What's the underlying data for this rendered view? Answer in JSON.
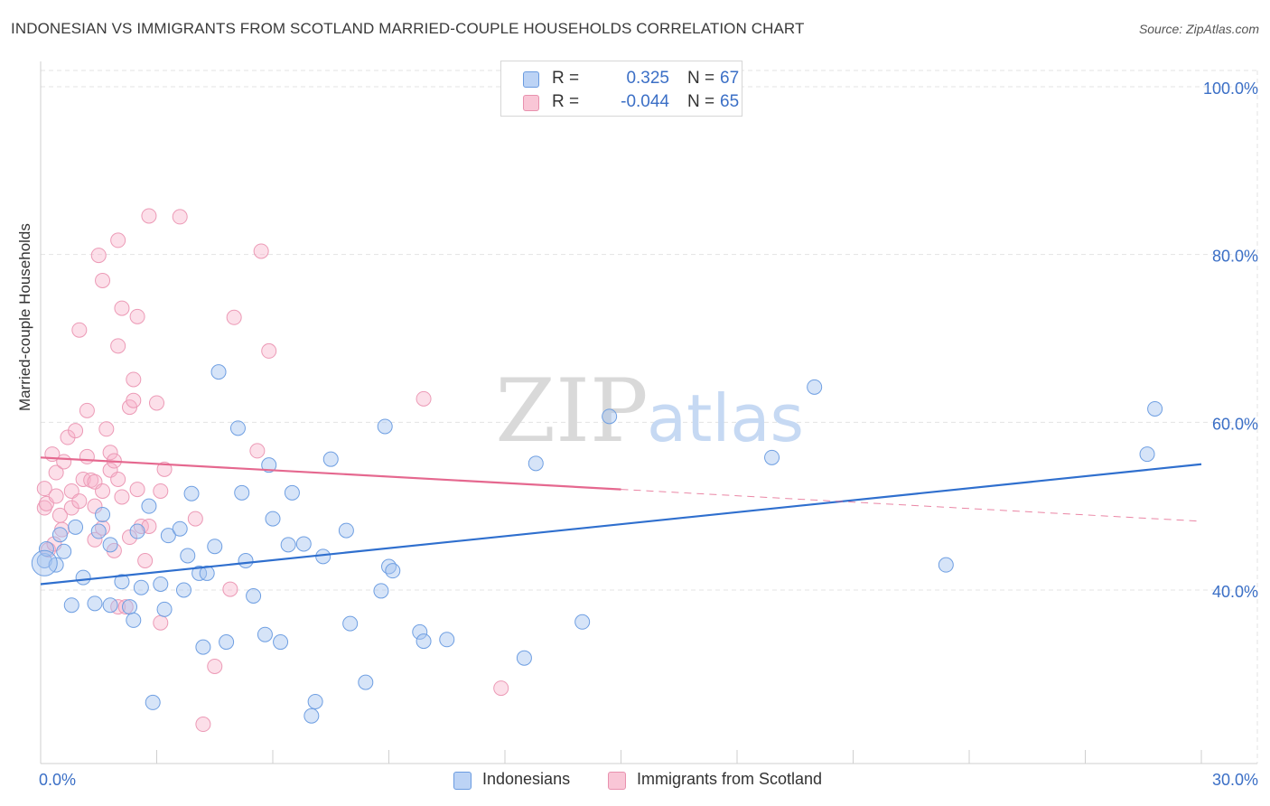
{
  "title": "INDONESIAN VS IMMIGRANTS FROM SCOTLAND MARRIED-COUPLE HOUSEHOLDS CORRELATION CHART",
  "source": "Source: ZipAtlas.com",
  "watermark": {
    "zip": "ZIP",
    "atlas": "atlas"
  },
  "legend": {
    "r_label": "R =",
    "n_label": "N =",
    "rows": [
      {
        "series": "Indonesians",
        "r": "0.325",
        "n": "67",
        "fill": "#bcd3f5",
        "stroke": "#6a9be0"
      },
      {
        "series": "Immigrants from Scotland",
        "r": "-0.044",
        "n": "65",
        "fill": "#f9c6d6",
        "stroke": "#e891ae"
      }
    ]
  },
  "colors": {
    "blue_point_fill": "rgba(164,196,240,0.45)",
    "blue_point_stroke": "#6f9fe2",
    "blue_line": "#2f6fce",
    "pink_point_fill": "rgba(247,176,200,0.40)",
    "pink_point_stroke": "#ec9ab6",
    "pink_line": "#e5688f",
    "axis_text": "#3b6fc6",
    "grid": "#e3e3e3"
  },
  "chart_data": {
    "type": "scatter",
    "title": "INDONESIAN VS IMMIGRANTS FROM SCOTLAND MARRIED-COUPLE HOUSEHOLDS CORRELATION CHART",
    "xlabel": "",
    "ylabel": "Married-couple Households",
    "xlim": [
      0,
      30
    ],
    "ylim": [
      20,
      102
    ],
    "x_ticks": [
      0,
      3,
      6,
      9,
      12,
      15,
      18,
      21,
      24,
      27,
      30
    ],
    "x_tick_labels": {
      "min": "0.0%",
      "max": "30.0%"
    },
    "y_ticks": [
      40,
      60,
      80,
      100
    ],
    "y_tick_labels": [
      "40.0%",
      "60.0%",
      "80.0%",
      "100.0%"
    ],
    "series": [
      {
        "name": "Indonesians",
        "R": 0.325,
        "N": 67,
        "trend": {
          "x0": 0,
          "y0": 40.7,
          "x1": 30,
          "y1": 55.0
        },
        "points": [
          [
            0.1,
            43.5
          ],
          [
            0.15,
            44.9
          ],
          [
            0.5,
            46.6
          ],
          [
            0.6,
            44.6
          ],
          [
            0.8,
            38.2
          ],
          [
            1.1,
            41.5
          ],
          [
            1.4,
            38.4
          ],
          [
            1.5,
            47.0
          ],
          [
            1.8,
            45.4
          ],
          [
            1.8,
            38.2
          ],
          [
            2.1,
            41.0
          ],
          [
            2.3,
            38.0
          ],
          [
            2.4,
            36.4
          ],
          [
            2.6,
            40.3
          ],
          [
            2.8,
            50.0
          ],
          [
            2.9,
            26.6
          ],
          [
            3.1,
            40.7
          ],
          [
            3.2,
            37.7
          ],
          [
            3.3,
            46.5
          ],
          [
            3.6,
            47.3
          ],
          [
            3.7,
            40.0
          ],
          [
            3.8,
            44.1
          ],
          [
            3.9,
            51.5
          ],
          [
            4.1,
            42.0
          ],
          [
            4.2,
            33.2
          ],
          [
            4.3,
            42.0
          ],
          [
            4.5,
            45.2
          ],
          [
            4.6,
            66.0
          ],
          [
            4.8,
            33.8
          ],
          [
            5.1,
            59.3
          ],
          [
            5.2,
            51.6
          ],
          [
            5.3,
            43.5
          ],
          [
            5.5,
            39.3
          ],
          [
            5.8,
            34.7
          ],
          [
            5.9,
            54.9
          ],
          [
            6.2,
            33.8
          ],
          [
            6.5,
            51.6
          ],
          [
            6.4,
            45.4
          ],
          [
            6.8,
            45.5
          ],
          [
            7.0,
            25.0
          ],
          [
            7.1,
            26.7
          ],
          [
            7.3,
            44.0
          ],
          [
            7.5,
            55.6
          ],
          [
            7.9,
            47.1
          ],
          [
            8.0,
            36.0
          ],
          [
            8.4,
            29.0
          ],
          [
            8.8,
            39.9
          ],
          [
            8.9,
            59.5
          ],
          [
            9.0,
            42.8
          ],
          [
            9.1,
            42.3
          ],
          [
            9.8,
            35.0
          ],
          [
            9.9,
            33.9
          ],
          [
            10.5,
            34.1
          ],
          [
            12.5,
            31.9
          ],
          [
            12.8,
            55.1
          ],
          [
            14.0,
            36.2
          ],
          [
            14.7,
            60.7
          ],
          [
            18.9,
            55.8
          ],
          [
            20.0,
            64.2
          ],
          [
            23.4,
            43.0
          ],
          [
            28.6,
            56.2
          ],
          [
            28.8,
            61.6
          ],
          [
            0.4,
            43.0
          ],
          [
            0.9,
            47.5
          ],
          [
            1.6,
            49.0
          ],
          [
            2.5,
            47.0
          ],
          [
            6.0,
            48.5
          ]
        ]
      },
      {
        "name": "Immigrants from Scotland",
        "R": -0.044,
        "N": 65,
        "trend": {
          "x0": 0,
          "y0": 55.8,
          "x1": 15,
          "y1": 52.0
        },
        "trend_dashed": {
          "x0": 15,
          "y0": 52.0,
          "x1": 30,
          "y1": 48.2
        },
        "points": [
          [
            0.1,
            49.8
          ],
          [
            0.1,
            52.1
          ],
          [
            0.15,
            50.3
          ],
          [
            0.2,
            44.8
          ],
          [
            0.3,
            56.2
          ],
          [
            0.4,
            54.0
          ],
          [
            0.4,
            51.2
          ],
          [
            0.5,
            48.9
          ],
          [
            0.55,
            47.2
          ],
          [
            0.6,
            55.3
          ],
          [
            0.7,
            58.2
          ],
          [
            0.8,
            51.8
          ],
          [
            0.8,
            49.8
          ],
          [
            0.9,
            59.0
          ],
          [
            1.0,
            71.0
          ],
          [
            1.1,
            53.2
          ],
          [
            1.2,
            61.4
          ],
          [
            1.2,
            55.9
          ],
          [
            1.3,
            53.1
          ],
          [
            1.4,
            52.9
          ],
          [
            1.4,
            46.0
          ],
          [
            1.4,
            50.0
          ],
          [
            1.5,
            79.9
          ],
          [
            1.6,
            47.4
          ],
          [
            1.6,
            51.8
          ],
          [
            1.6,
            76.9
          ],
          [
            1.7,
            59.2
          ],
          [
            1.8,
            54.3
          ],
          [
            1.8,
            56.4
          ],
          [
            1.9,
            44.7
          ],
          [
            1.9,
            55.4
          ],
          [
            2.0,
            69.1
          ],
          [
            2.0,
            81.7
          ],
          [
            2.0,
            53.2
          ],
          [
            2.0,
            38.0
          ],
          [
            2.1,
            73.6
          ],
          [
            2.1,
            51.1
          ],
          [
            2.2,
            38.0
          ],
          [
            2.3,
            61.8
          ],
          [
            2.3,
            46.3
          ],
          [
            2.4,
            65.1
          ],
          [
            2.4,
            62.6
          ],
          [
            2.5,
            72.6
          ],
          [
            2.5,
            52.0
          ],
          [
            2.6,
            47.6
          ],
          [
            2.7,
            43.5
          ],
          [
            2.8,
            84.6
          ],
          [
            2.8,
            47.6
          ],
          [
            3.0,
            62.3
          ],
          [
            3.1,
            36.1
          ],
          [
            3.1,
            51.8
          ],
          [
            3.2,
            54.4
          ],
          [
            3.6,
            84.5
          ],
          [
            4.0,
            48.5
          ],
          [
            4.2,
            24.0
          ],
          [
            4.5,
            30.9
          ],
          [
            4.9,
            40.1
          ],
          [
            5.0,
            72.5
          ],
          [
            5.6,
            56.6
          ],
          [
            5.7,
            80.4
          ],
          [
            5.9,
            68.5
          ],
          [
            9.9,
            62.8
          ],
          [
            11.9,
            28.3
          ],
          [
            0.35,
            45.5
          ],
          [
            1.0,
            50.6
          ]
        ]
      }
    ]
  }
}
